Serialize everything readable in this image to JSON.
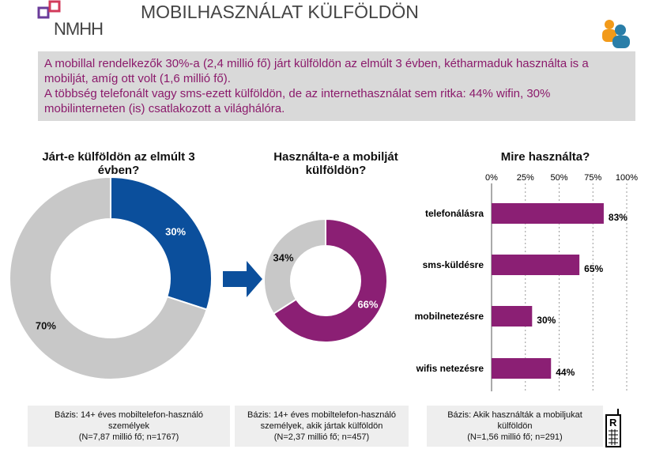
{
  "header": {
    "title": "MOBILHASZNÁLAT KÜLFÖLDÖN",
    "logo": "NMHH"
  },
  "summary": {
    "line1": "A mobillal rendelkezők 30%-a (2,4 millió fő) járt külföldön az elmúlt 3 évben, kétharmaduk használta is a mobilját, amíg ott volt (1,6 millió fő).",
    "line2": "A többség telefonált vagy sms-ezett külföldön, de az internethasználat sem ritka: 44% wifin, 30% mobilinterneten (is) csatlakozott a világhálóra."
  },
  "colors": {
    "blue": "#0b4f9c",
    "purple": "#8b1f74",
    "gray": "#c8c8c8"
  },
  "chart_data": [
    {
      "type": "pie",
      "title": "Járt-e külföldön az elmúlt 3 évben?",
      "values": [
        30,
        70
      ],
      "labels": [
        "30%",
        "70%"
      ],
      "colors": [
        "#0b4f9c",
        "#c8c8c8"
      ]
    },
    {
      "type": "pie",
      "title": "Használta-e a mobilját külföldön?",
      "values": [
        66,
        34
      ],
      "labels": [
        "66%",
        "34%"
      ],
      "colors": [
        "#8b1f74",
        "#c8c8c8"
      ]
    },
    {
      "type": "bar",
      "orientation": "horizontal",
      "title": "Mire használta?",
      "categories": [
        "telefonálásra",
        "sms-küldésre",
        "mobilnetezésre",
        "wifis netezésre"
      ],
      "values": [
        83,
        65,
        30,
        44
      ],
      "labels": [
        "83%",
        "65%",
        "30%",
        "44%"
      ],
      "xlim": [
        0,
        100
      ],
      "ticks": [
        "0%",
        "25%",
        "50%",
        "75%",
        "100%"
      ],
      "grid": true,
      "color": "#8b1f74"
    }
  ],
  "footers": [
    {
      "l1": "Bázis: 14+ éves mobiltelefon-használó",
      "l2": "személyek",
      "l3": "(N=7,87 millió fő; n=1767)"
    },
    {
      "l1": "Bázis: 14+ éves mobiltelefon-használó",
      "l2": "személyek, akik jártak külföldön",
      "l3": "(N=2,37 millió fő; n=457)"
    },
    {
      "l1": "Bázis: Akik használták a mobiljukat",
      "l2": "külföldön",
      "l3": "(N=1,56 millió fő; n=291)"
    }
  ]
}
